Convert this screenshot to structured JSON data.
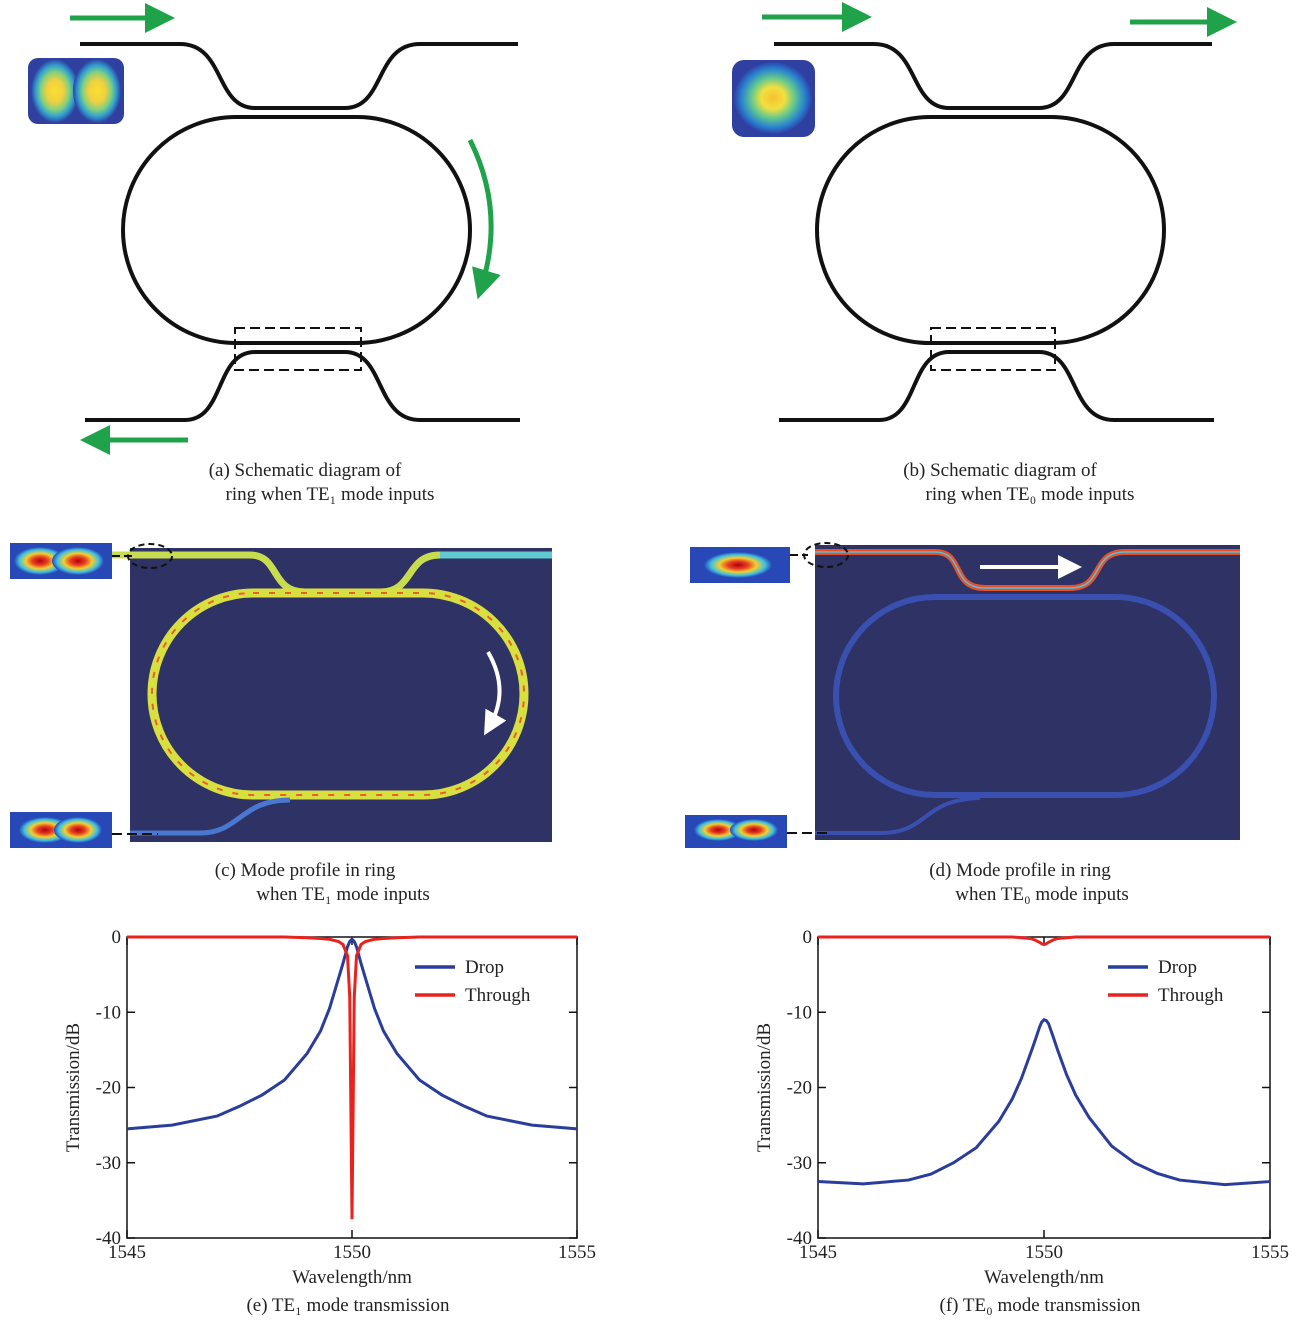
{
  "diagrams": [
    {
      "caption": [
        "(a) Schematic diagram of",
        "ring when TE₁ mode inputs"
      ]
    },
    {
      "caption": [
        "(b) Schematic diagram of",
        "ring when TE₀ mode inputs"
      ]
    },
    {
      "caption": [
        "(c) Mode profile in ring",
        "when TE₁ mode inputs"
      ]
    },
    {
      "caption": [
        "(d) Mode profile in ring",
        "when TE₀ mode inputs"
      ]
    }
  ],
  "chart_data": [
    {
      "type": "line",
      "title": "(e) TE₁ mode transmission",
      "x_label": "Wavelength/nm",
      "y_label": "Transmission/dB",
      "x": [
        1545,
        1546,
        1547,
        1547.5,
        1548,
        1548.5,
        1549,
        1549.3,
        1549.5,
        1549.7,
        1549.8,
        1549.9,
        1549.95,
        1550,
        1550.05,
        1550.1,
        1550.2,
        1550.3,
        1550.5,
        1550.7,
        1551,
        1551.5,
        1552,
        1552.5,
        1553,
        1554,
        1555
      ],
      "series": [
        {
          "name": "Drop",
          "color": "#2a3d9c",
          "values": [
            -25.5,
            -25,
            -23.8,
            -22.5,
            -21,
            -19,
            -15.5,
            -12.5,
            -9.5,
            -5.5,
            -3.5,
            -1.3,
            -0.6,
            -0.3,
            -0.6,
            -1.3,
            -3.5,
            -5.5,
            -9.5,
            -12.5,
            -15.5,
            -19,
            -21,
            -22.5,
            -23.8,
            -25,
            -25.5
          ]
        },
        {
          "name": "Through",
          "color": "#e8231e",
          "values": [
            0,
            0,
            0,
            0,
            0,
            0,
            -0.1,
            -0.2,
            -0.3,
            -0.6,
            -1,
            -2.5,
            -8,
            -37.5,
            -8,
            -2.5,
            -1,
            -0.6,
            -0.3,
            -0.2,
            -0.1,
            0,
            0,
            0,
            0,
            0,
            0
          ]
        }
      ],
      "xlim": [
        1545,
        1555
      ],
      "xticks": [
        1545,
        1550,
        1555
      ],
      "ylim": [
        -40,
        0
      ],
      "yticks": [
        -40,
        -30,
        -20,
        -10,
        0
      ],
      "legend": "upper right"
    },
    {
      "type": "line",
      "title": "(f) TE₀ mode transmission",
      "x_label": "Wavelength/nm",
      "y_label": "Transmission/dB",
      "x": [
        1545,
        1546,
        1547,
        1547.5,
        1548,
        1548.5,
        1549,
        1549.3,
        1549.5,
        1549.7,
        1549.8,
        1549.9,
        1549.95,
        1550,
        1550.05,
        1550.1,
        1550.2,
        1550.3,
        1550.5,
        1550.7,
        1551,
        1551.5,
        1552,
        1552.5,
        1553,
        1554,
        1555
      ],
      "series": [
        {
          "name": "Drop",
          "color": "#2a3d9c",
          "values": [
            -32.5,
            -32.8,
            -32.3,
            -31.5,
            -30,
            -28,
            -24.5,
            -21.5,
            -18.8,
            -15.5,
            -13.8,
            -12,
            -11.3,
            -11,
            -11.1,
            -11.5,
            -13.2,
            -15,
            -18.3,
            -21,
            -24,
            -27.8,
            -30,
            -31.4,
            -32.3,
            -32.9,
            -32.5
          ]
        },
        {
          "name": "Through",
          "color": "#e8231e",
          "values": [
            0,
            0,
            0,
            0,
            0,
            0,
            0,
            0,
            -0.1,
            -0.2,
            -0.4,
            -0.7,
            -0.9,
            -1,
            -0.9,
            -0.7,
            -0.4,
            -0.2,
            -0.1,
            0,
            0,
            0,
            0,
            0,
            0,
            0,
            0
          ]
        }
      ],
      "xlim": [
        1545,
        1555
      ],
      "xticks": [
        1545,
        1550,
        1555
      ],
      "ylim": [
        -40,
        0
      ],
      "yticks": [
        -40,
        -30,
        -20,
        -10,
        0
      ],
      "legend": "upper right"
    }
  ]
}
